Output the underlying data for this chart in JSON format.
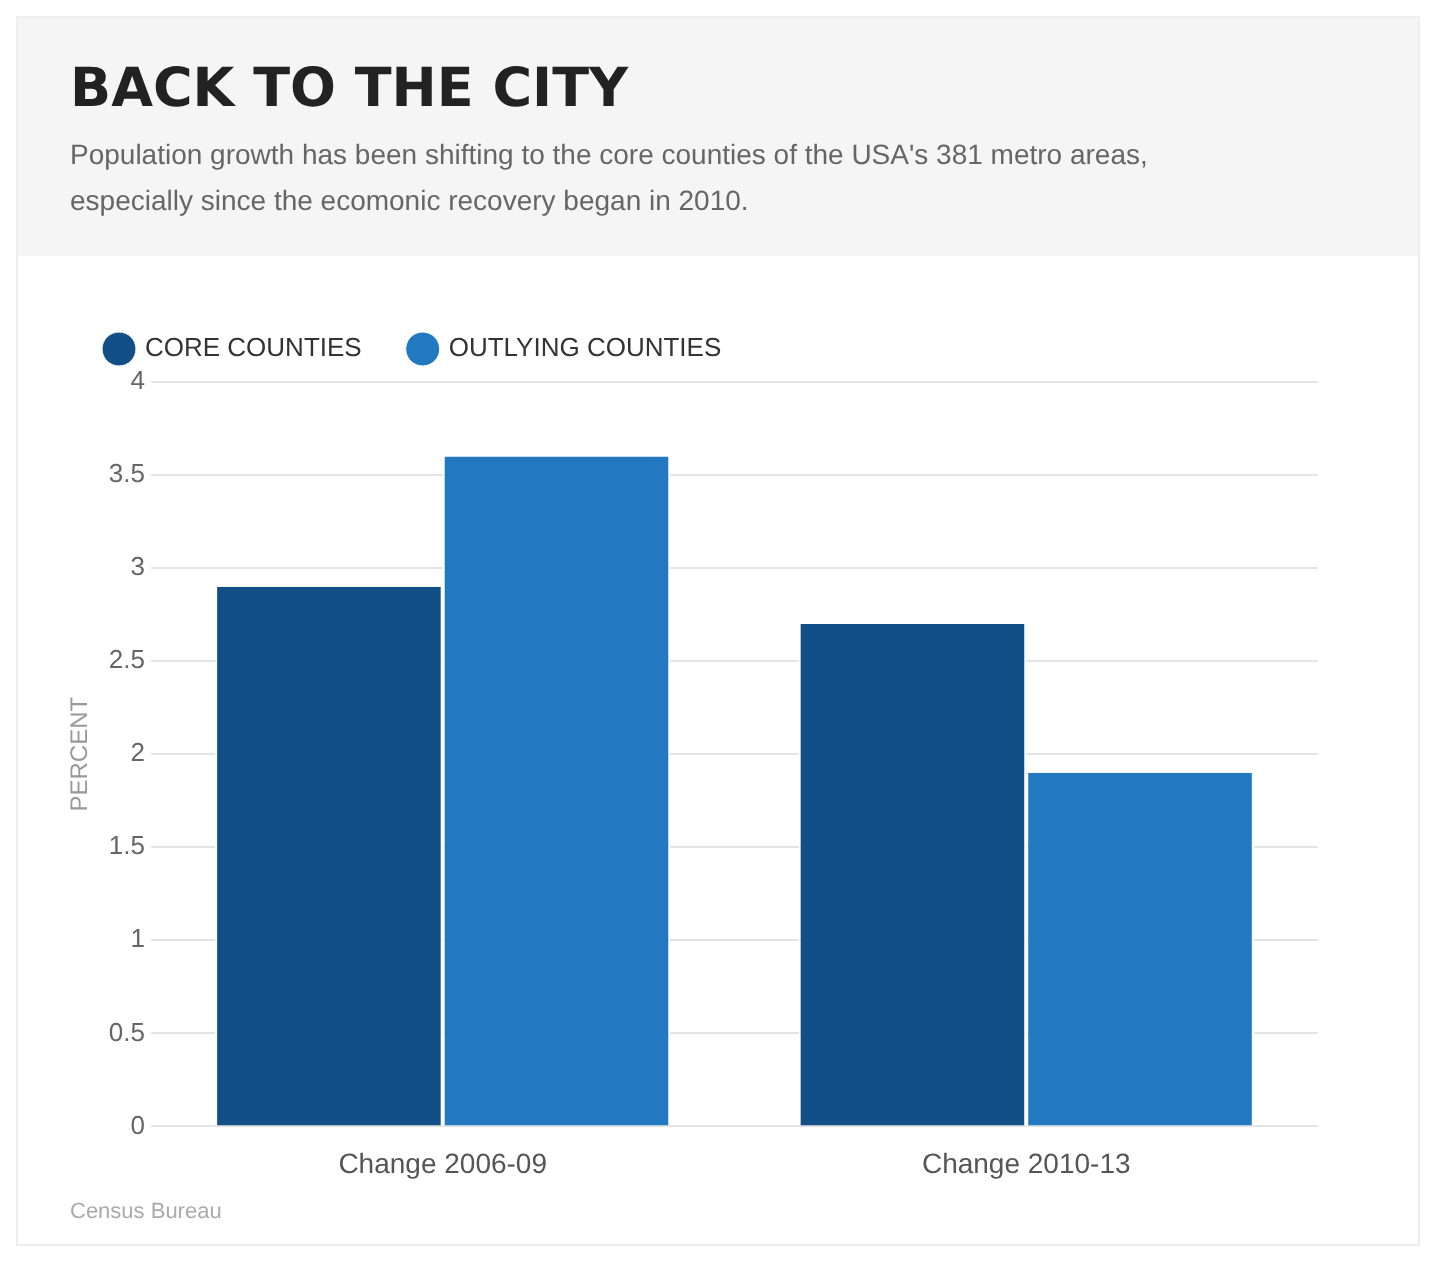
{
  "chart_data": {
    "type": "bar",
    "title": "BACK TO THE CITY",
    "subtitle": "Population growth has been shifting to the core counties of the USA's 381 metro areas, especially since the ecomonic recovery began in 2010.",
    "ylabel": "PERCENT",
    "categories": [
      "Change 2006-09",
      "Change 2010-13"
    ],
    "series": [
      {
        "name": "CORE COUNTIES",
        "color": "#124f87",
        "values": [
          2.9,
          2.7
        ]
      },
      {
        "name": "OUTLYING COUNTIES",
        "color": "#2379c0",
        "values": [
          3.6,
          1.9
        ]
      }
    ],
    "ylim": [
      0,
      4
    ],
    "yticks": [
      0,
      0.5,
      1,
      1.5,
      2,
      2.5,
      3,
      3.5,
      4
    ],
    "grid": "y",
    "legend": "top left",
    "annotations": [
      "Census Bureau"
    ]
  }
}
